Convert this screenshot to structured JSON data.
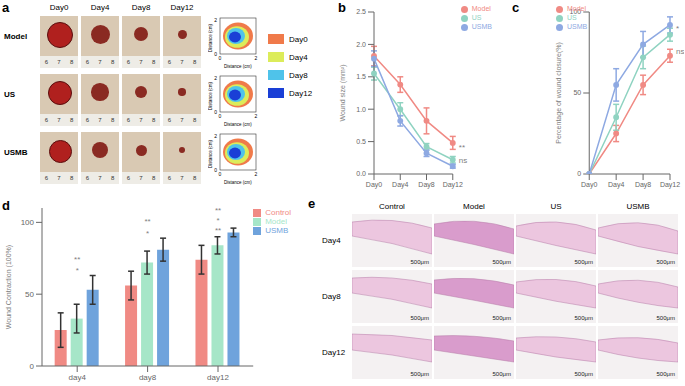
{
  "chart_data": [
    {
      "panel": "b",
      "type": "line",
      "y_label": "Wound size (mm²)",
      "categories": [
        "Day0",
        "Day4",
        "Day8",
        "Day12"
      ],
      "series": [
        {
          "name": "Model",
          "color": "#f08a84",
          "marker": "circle",
          "values": [
            1.82,
            1.38,
            0.82,
            0.48
          ],
          "errors": [
            0.15,
            0.12,
            0.2,
            0.1
          ]
        },
        {
          "name": "US",
          "color": "#8fd3c1",
          "marker": "circle",
          "values": [
            1.55,
            1.0,
            0.42,
            0.22
          ],
          "errors": [
            0.1,
            0.1,
            0.05,
            0.05
          ]
        },
        {
          "name": "USMB",
          "color": "#8ea9e2",
          "marker": "circle",
          "values": [
            1.78,
            0.82,
            0.32,
            0.12
          ],
          "errors": [
            0.12,
            0.08,
            0.05,
            0.03
          ]
        }
      ],
      "ylim": [
        0,
        2.5
      ],
      "yticks": [
        {
          "value": 0,
          "label": "0.0"
        },
        {
          "value": 0.5,
          "label": "0.5"
        },
        {
          "value": 1,
          "label": "1.0"
        },
        {
          "value": 1.5,
          "label": "1.5"
        },
        {
          "value": 2,
          "label": "2.0"
        },
        {
          "value": 2.5,
          "label": "2.5"
        }
      ],
      "grid": false,
      "legend": "upper right",
      "annotations": [
        {
          "text": "**",
          "x": "Day12",
          "y": 0.42
        },
        {
          "text": "ns",
          "x": "Day12",
          "y": 0.22
        }
      ]
    },
    {
      "panel": "c",
      "type": "line",
      "y_label": "Percentage of wound closure(%)",
      "categories": [
        "Day0",
        "Day4",
        "Day8",
        "Day12"
      ],
      "series": [
        {
          "name": "Model",
          "color": "#f08a84",
          "marker": "circle",
          "values": [
            0,
            25,
            55,
            73
          ],
          "errors": [
            0,
            5,
            6,
            4
          ]
        },
        {
          "name": "US",
          "color": "#8fd3c1",
          "marker": "circle",
          "values": [
            0,
            35,
            72,
            86
          ],
          "errors": [
            0,
            8,
            7,
            4
          ]
        },
        {
          "name": "USMB",
          "color": "#8ea9e2",
          "marker": "circle",
          "values": [
            0,
            55,
            80,
            92
          ],
          "errors": [
            0,
            10,
            8,
            5
          ]
        }
      ],
      "ylim": [
        0,
        100
      ],
      "yticks": [
        0,
        50,
        100
      ],
      "grid": false,
      "legend": "upper left",
      "annotations": [
        {
          "text": "*",
          "x": "Day12",
          "y": 90
        },
        {
          "text": "ns",
          "x": "Day12",
          "y": 76
        }
      ]
    },
    {
      "panel": "d",
      "type": "bar",
      "y_label": "Wound Contraction (100%)",
      "categories": [
        "day4",
        "day8",
        "day12"
      ],
      "series": [
        {
          "name": "Control",
          "color": "#f08a84",
          "values": [
            25,
            56,
            74
          ],
          "errors": [
            12,
            10,
            10
          ]
        },
        {
          "name": "Model",
          "color": "#a6e6c8",
          "values": [
            33,
            72,
            84
          ],
          "errors": [
            10,
            8,
            6
          ]
        },
        {
          "name": "USMB",
          "color": "#6fa3dc",
          "values": [
            53,
            81,
            93
          ],
          "errors": [
            10,
            8,
            3
          ]
        }
      ],
      "ylim": [
        0,
        110
      ],
      "yticks": [
        0,
        50,
        100
      ],
      "grid": false,
      "legend": "right",
      "annotations": [
        {
          "text": "**",
          "x": "day4",
          "y": 72
        },
        {
          "text": "*",
          "x": "day4",
          "y": 64
        },
        {
          "text": "**",
          "x": "day8",
          "y": 98
        },
        {
          "text": "*",
          "x": "day8",
          "y": 90
        },
        {
          "text": "**",
          "x": "day12",
          "y": 106
        },
        {
          "text": "*",
          "x": "day12",
          "y": 99
        },
        {
          "text": "**",
          "x": "day12",
          "y": 92
        }
      ]
    }
  ],
  "photos": {
    "panel": "a",
    "columns": [
      "Day0",
      "Day4",
      "Day8",
      "Day12"
    ],
    "rows": [
      "Model",
      "US",
      "USMB"
    ],
    "ruler_labels": [
      "6",
      "7",
      "8"
    ],
    "contour_axis_label": "Distance (cm)",
    "contour_ticks": [
      "0",
      "2"
    ],
    "legend": [
      {
        "name": "Day0",
        "color": "#f07a4a"
      },
      {
        "name": "Day4",
        "color": "#dcec5a"
      },
      {
        "name": "Day8",
        "color": "#4fc3ea"
      },
      {
        "name": "Day12",
        "color": "#1a3fd6"
      }
    ]
  },
  "histology": {
    "panel": "e",
    "columns": [
      "Control",
      "Model",
      "US",
      "USMB"
    ],
    "rows": [
      "Day4",
      "Day8",
      "Day12"
    ],
    "scale_bar": "500μm"
  }
}
